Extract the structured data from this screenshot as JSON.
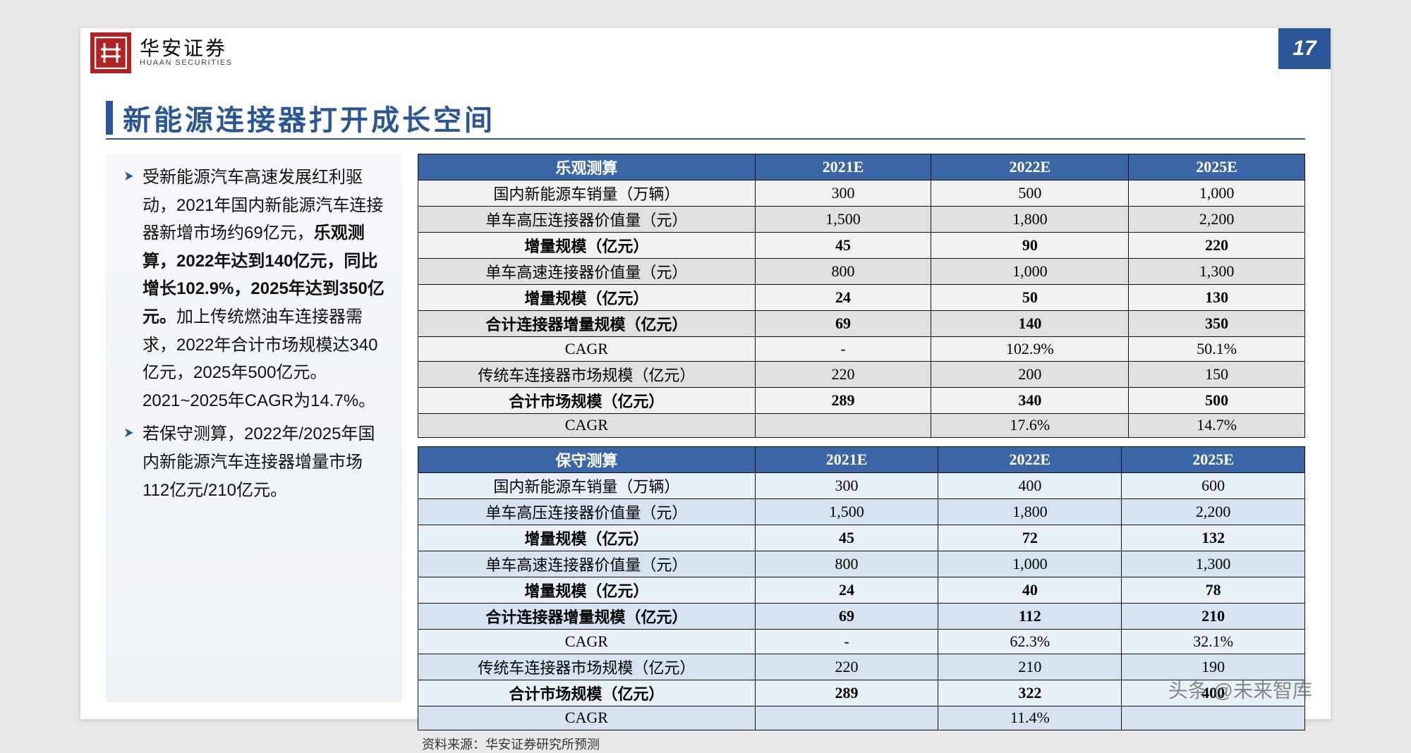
{
  "page": {
    "number": "17"
  },
  "brand": {
    "cn": "华安证券",
    "en": "HUAAN SECURITIES"
  },
  "title": "新能源连接器打开成长空间",
  "bullets": {
    "p1_a": "受新能源汽车高速发展红利驱动，2021年国内新能源汽车连接器新增市场约69亿元，",
    "p1_b": "乐观测算，2022年达到140亿元，同比增长102.9%，2025年达到350亿元。",
    "p1_c": "加上传统燃油车连接器需求，2022年合计市场规模达340亿元，2025年500亿元。2021~2025年CAGR为14.7%。",
    "p2": "若保守测算，2022年/2025年国内新能源汽车连接器增量市场112亿元/210亿元。"
  },
  "table_optimistic": {
    "header": [
      "乐观测算",
      "2021E",
      "2022E",
      "2025E"
    ],
    "rows": [
      {
        "label": "国内新能源车销量（万辆）",
        "c1": "300",
        "c2": "500",
        "c3": "1,000",
        "bold": false
      },
      {
        "label": "单车高压连接器价值量（元）",
        "c1": "1,500",
        "c2": "1,800",
        "c3": "2,200",
        "bold": false
      },
      {
        "label": "增量规模（亿元）",
        "c1": "45",
        "c2": "90",
        "c3": "220",
        "bold": true
      },
      {
        "label": "单车高速连接器价值量（元）",
        "c1": "800",
        "c2": "1,000",
        "c3": "1,300",
        "bold": false
      },
      {
        "label": "增量规模（亿元）",
        "c1": "24",
        "c2": "50",
        "c3": "130",
        "bold": true
      },
      {
        "label": "合计连接器增量规模（亿元）",
        "c1": "69",
        "c2": "140",
        "c3": "350",
        "bold": true
      },
      {
        "label": "CAGR",
        "c1": "-",
        "c2": "102.9%",
        "c3": "50.1%",
        "bold": false
      },
      {
        "label": "传统车连接器市场规模（亿元）",
        "c1": "220",
        "c2": "200",
        "c3": "150",
        "bold": false
      },
      {
        "label": "合计市场规模（亿元）",
        "c1": "289",
        "c2": "340",
        "c3": "500",
        "bold": true
      },
      {
        "label": "CAGR",
        "c1": "",
        "c2": "17.6%",
        "c3": "14.7%",
        "bold": false
      }
    ]
  },
  "table_conservative": {
    "header": [
      "保守测算",
      "2021E",
      "2022E",
      "2025E"
    ],
    "rows": [
      {
        "label": "国内新能源车销量（万辆）",
        "c1": "300",
        "c2": "400",
        "c3": "600",
        "bold": false
      },
      {
        "label": "单车高压连接器价值量（元）",
        "c1": "1,500",
        "c2": "1,800",
        "c3": "2,200",
        "bold": false
      },
      {
        "label": "增量规模（亿元）",
        "c1": "45",
        "c2": "72",
        "c3": "132",
        "bold": true
      },
      {
        "label": "单车高速连接器价值量（元）",
        "c1": "800",
        "c2": "1,000",
        "c3": "1,300",
        "bold": false
      },
      {
        "label": "增量规模（亿元）",
        "c1": "24",
        "c2": "40",
        "c3": "78",
        "bold": true
      },
      {
        "label": "合计连接器增量规模（亿元）",
        "c1": "69",
        "c2": "112",
        "c3": "210",
        "bold": true
      },
      {
        "label": "CAGR",
        "c1": "-",
        "c2": "62.3%",
        "c3": "32.1%",
        "bold": false
      },
      {
        "label": "传统车连接器市场规模（亿元）",
        "c1": "220",
        "c2": "210",
        "c3": "190",
        "bold": false
      },
      {
        "label": "合计市场规模（亿元）",
        "c1": "289",
        "c2": "322",
        "c3": "400",
        "bold": true
      },
      {
        "label": "CAGR",
        "c1": "",
        "c2": "11.4%",
        "c3": "",
        "bold": false
      }
    ]
  },
  "source": "资料来源：华安证券研究所预测",
  "watermark": "头条 @未来智库",
  "colors": {
    "brand_blue": "#2a5698",
    "brand_red": "#b22222",
    "table_header": "#3a66a8",
    "t1_odd": "#f1f1f1",
    "t1_even": "#e0e0e0",
    "t2_odd": "#eaf0f8",
    "t2_even": "#d6e2f0"
  }
}
